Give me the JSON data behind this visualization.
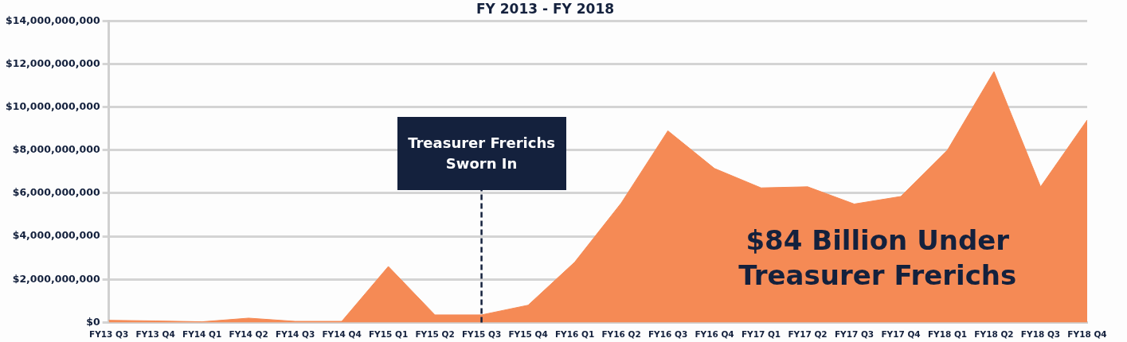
{
  "chart_data": {
    "type": "area",
    "title": "FY 2013 - FY 2018",
    "categories": [
      "FY13 Q3",
      "FY13 Q4",
      "FY14 Q1",
      "FY14 Q2",
      "FY14 Q3",
      "FY14 Q4",
      "FY15 Q1",
      "FY15 Q2",
      "FY15 Q3",
      "FY15 Q4",
      "FY16 Q1",
      "FY16 Q2",
      "FY16 Q3",
      "FY16 Q4",
      "FY17 Q1",
      "FY17 Q2",
      "FY17 Q3",
      "FY17 Q4",
      "FY18 Q1",
      "FY18 Q2",
      "FY18 Q3",
      "FY18 Q4"
    ],
    "series": [
      {
        "color": "#f58a55",
        "values": [
          100000000,
          70000000,
          30000000,
          200000000,
          50000000,
          50000000,
          2600000000,
          350000000,
          350000000,
          800000000,
          2800000000,
          5550000000,
          8900000000,
          7150000000,
          6250000000,
          6300000000,
          5500000000,
          5850000000,
          8000000000,
          11650000000,
          6300000000,
          9400000000
        ]
      }
    ],
    "ylim": [
      0,
      14000000000
    ],
    "yticks": [
      {
        "value": 0,
        "label": "$0"
      },
      {
        "value": 2000000000,
        "label": "$2,000,000,000"
      },
      {
        "value": 4000000000,
        "label": "$4,000,000,000"
      },
      {
        "value": 6000000000,
        "label": "$6,000,000,000"
      },
      {
        "value": 8000000000,
        "label": "$8,000,000,000"
      },
      {
        "value": 10000000000,
        "label": "$10,000,000,000"
      },
      {
        "value": 12000000000,
        "label": "$12,000,000,000"
      },
      {
        "value": 14000000000,
        "label": "$14,000,000,000"
      }
    ],
    "grid": "y",
    "legend": false,
    "ref_lines": [
      {
        "axis": "x",
        "value": "FY15 Q3",
        "label": "Treasurer Frerichs Sworn In",
        "color": "#14213d",
        "line_style": "dashed"
      }
    ],
    "annotations": [
      "$84 Billion Under Treasurer Frerichs"
    ]
  }
}
